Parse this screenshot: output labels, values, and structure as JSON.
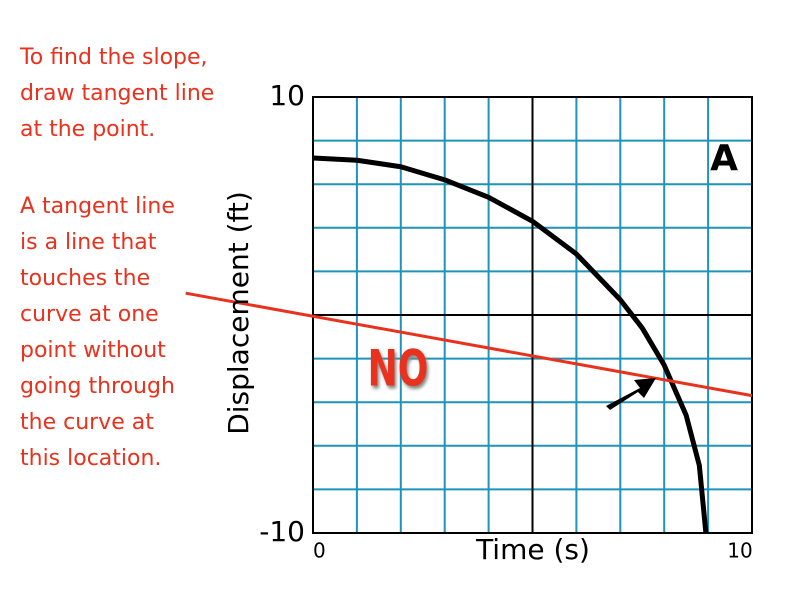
{
  "chart_data": {
    "type": "line",
    "notes": [
      [
        "To find the slope,",
        "draw tangent line",
        "at the point."
      ],
      [
        "A tangent line",
        "is a line that",
        "touches the",
        "curve at one",
        "point without",
        "going through",
        "the curve at",
        "this location."
      ]
    ],
    "annotations": {
      "no": "NO",
      "label": "A"
    },
    "xlabel": "Time (s)",
    "ylabel": "Displacement (ft)",
    "xlim": [
      0,
      10
    ],
    "ylim": [
      -10,
      10
    ],
    "xticks": [
      0,
      10
    ],
    "yticks": [
      -10,
      10
    ],
    "grid": true,
    "xgrid": [
      1,
      2,
      3,
      4,
      6,
      7,
      8,
      9
    ],
    "ygrid": [
      -8,
      -6,
      -4,
      -2,
      2,
      4,
      6,
      8
    ],
    "xgrid_major": [
      5
    ],
    "ygrid_major": [
      0
    ],
    "grid_color": "#1f93b8",
    "series": [
      {
        "color": "#000000",
        "x": [
          0,
          1,
          2,
          3,
          4,
          5,
          6,
          7,
          7.5,
          8,
          8.5,
          8.8,
          8.95
        ],
        "values": [
          7.2,
          7.1,
          6.8,
          6.2,
          5.4,
          4.3,
          2.8,
          0.7,
          -0.6,
          -2.3,
          -4.6,
          -6.9,
          -10
        ]
      },
      {
        "color": "#e8321e",
        "x": [
          -2.9,
          10
        ],
        "values": [
          1.0,
          -3.7
        ]
      }
    ]
  }
}
